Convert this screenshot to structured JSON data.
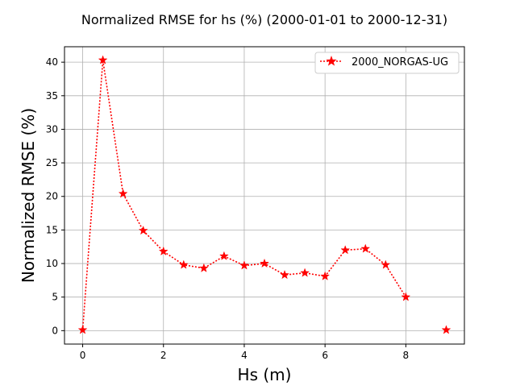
{
  "chart_data": {
    "type": "line",
    "title": "Normalized RMSE for hs (%) (2000-01-01 to 2000-12-31)",
    "xlabel": "Hs (m)",
    "ylabel": "Normalized RMSE (%)",
    "xlim": [
      -0.45,
      9.45
    ],
    "ylim": [
      -2.0,
      42.3
    ],
    "xticks": [
      0,
      2,
      4,
      6,
      8
    ],
    "yticks": [
      0,
      5,
      10,
      15,
      20,
      25,
      30,
      35,
      40
    ],
    "grid": true,
    "legend_position": "top-right",
    "series": [
      {
        "name": "2000_NORGAS-UG",
        "color": "#ff0000",
        "marker": "star",
        "linestyle": "dotted",
        "x": [
          0,
          0.5,
          1,
          1.5,
          2,
          2.5,
          3,
          3.5,
          4,
          4.5,
          5,
          5.5,
          6,
          6.5,
          7,
          7.5,
          8,
          9
        ],
        "y": [
          0.1,
          40.3,
          20.4,
          14.9,
          11.8,
          9.8,
          9.3,
          11.1,
          9.7,
          10.0,
          8.3,
          8.6,
          8.1,
          12.0,
          12.2,
          9.8,
          5.0,
          0.1
        ],
        "breaks_after": [
          8
        ]
      }
    ]
  }
}
